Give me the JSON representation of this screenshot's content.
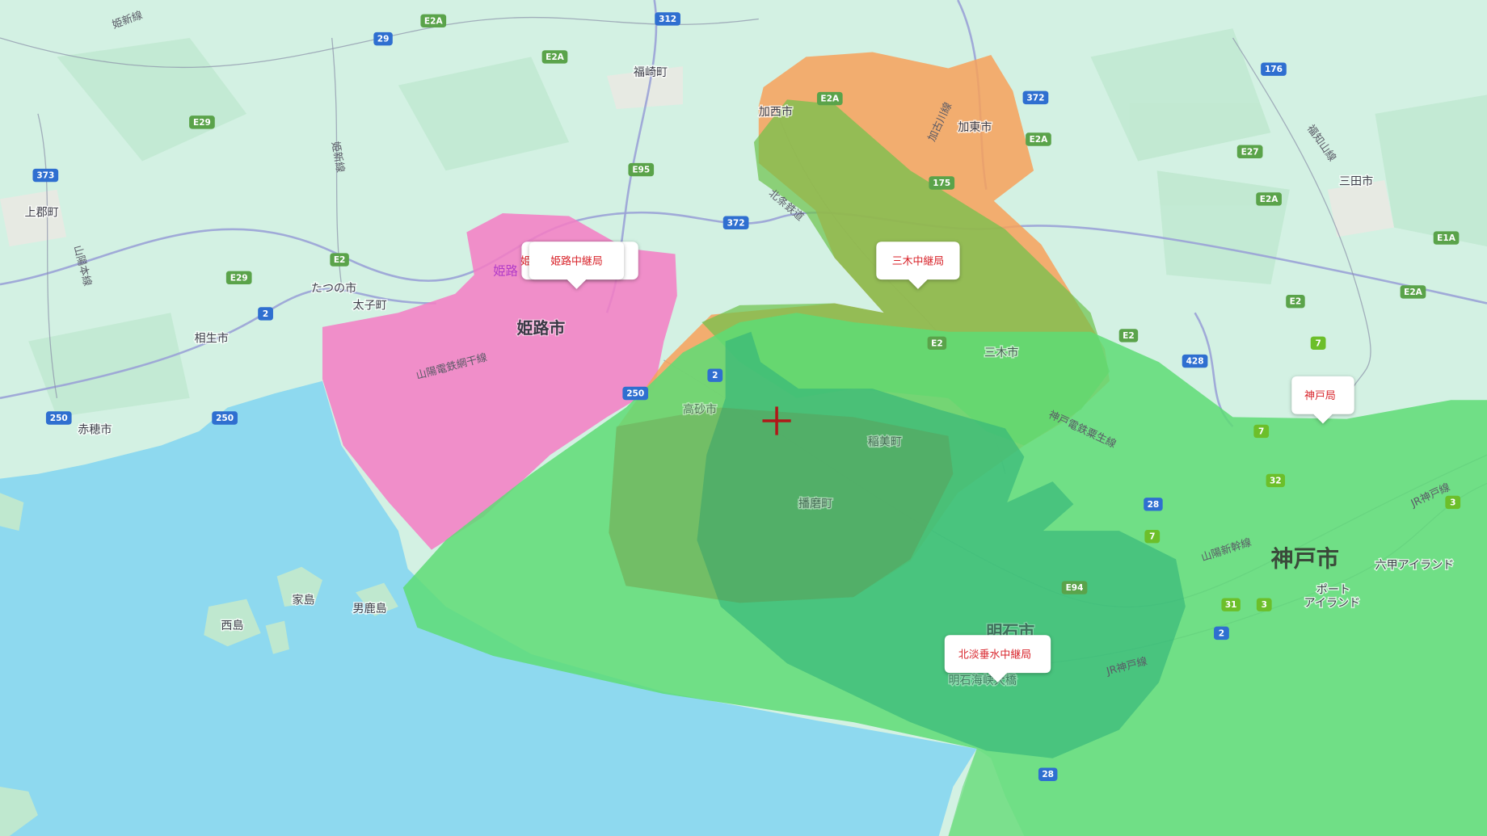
{
  "map": {
    "colors": {
      "land": "#d3f1e3",
      "sea": "#8ed9ef",
      "himeji_coverage": "#f57cc4",
      "miki_orange_coverage": "#f7a15a",
      "miki_green_coverage": "#6cc24a",
      "kobe_coverage": "#5edc75",
      "hokudan_coverage": "#2fb27a",
      "marker_text": "#d8232a",
      "crosshair": "#b01818"
    },
    "crosshair_icon": "crosshair-plus",
    "markers": [
      {
        "label": "姫路中継局"
      },
      {
        "label": "三木中継局"
      },
      {
        "label": "神戸局"
      },
      {
        "label": "北淡垂水中継局"
      }
    ],
    "hidden_marker_partial": "姫路",
    "places": {
      "fukusaki": "福崎町",
      "kasai": "加西市",
      "kato": "加東市",
      "sanda": "三田市",
      "kamigori": "上郡町",
      "tatsuno": "たつの市",
      "taishi": "太子町",
      "aioi": "相生市",
      "ako": "赤穂市",
      "himeji": "姫路市",
      "himeji_partial": "姫路",
      "takasago": "高砂市",
      "inami": "稲美町",
      "harima": "播磨町",
      "miki": "三木市",
      "akashi": "明石市",
      "kobe": "神戸市",
      "port_island_1": "ポート",
      "port_island_2": "アイランド",
      "rokko_island": "六甲アイランド",
      "ieshima": "家島",
      "tangashima": "男鹿島",
      "nishijima": "西島",
      "akashi_bridge": "明石海峡大橋"
    },
    "rail_lines": {
      "kishin_top": "姫新線",
      "kishin": "姫新線",
      "sanyo_main": "山陽本線",
      "sanyo_aboshi": "山陽電鉄網干線",
      "hojo": "北条鉄道",
      "kakogawa": "加古川線",
      "fukuchiyama": "福知山線",
      "shintetsu_ao": "神戸電鉄粟生線",
      "sanyo_shinkansen": "山陽新幹線",
      "jr_kobe_1": "JR神戸線",
      "jr_kobe_2": "JR神戸線"
    },
    "road_shields": {
      "e2a_1": "E2A",
      "e2a_2": "E2A",
      "e2a_3": "E2A",
      "e2a_4": "E2A",
      "e2a_5": "E2A",
      "e2a_6": "E2A",
      "e2_1": "E2",
      "e2_2": "E2",
      "e2_3": "E2",
      "e2_4": "E2",
      "e29_1": "E29",
      "e29_2": "E29",
      "e95": "E95",
      "e27": "E27",
      "e1a": "E1A",
      "e94": "E94",
      "r29": "29",
      "r312": "312",
      "r373": "373",
      "r372_1": "372",
      "r372_2": "372",
      "r176": "176",
      "r2_1": "2",
      "r2_2": "2",
      "r2_3": "2",
      "r250_1": "250",
      "r250_2": "250",
      "r250_3": "250",
      "r175": "175",
      "r428": "428",
      "r7_1": "7",
      "r7_2": "7",
      "r7_3": "7",
      "r28_1": "28",
      "r28_2": "28",
      "r32": "32",
      "r31": "31",
      "r3_1": "3",
      "r3_2": "3"
    }
  }
}
